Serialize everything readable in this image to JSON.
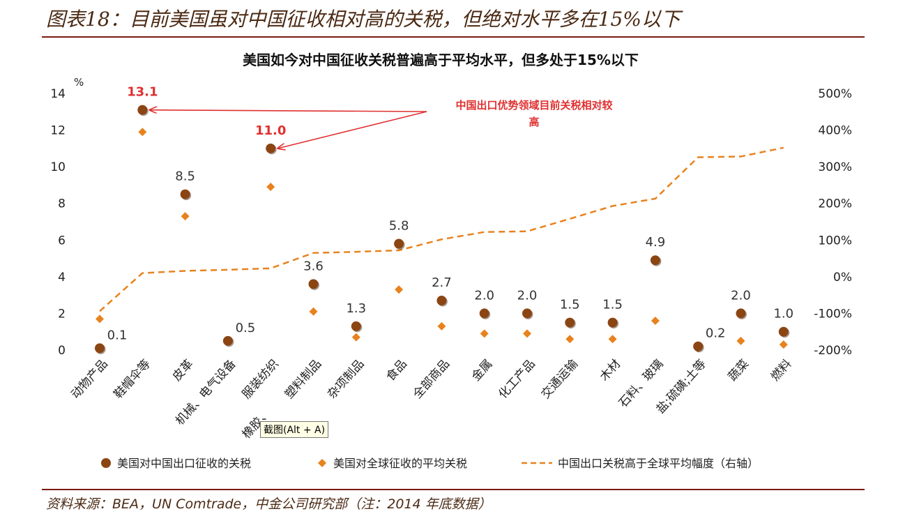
{
  "header": {
    "title": "图表18：目前美国虽对中国征收相对高的关税，但绝对水平多在15%以下"
  },
  "footer": {
    "source": "资料来源：BEA，UN Comtrade，中金公司研究部（注：2014 年底数据）"
  },
  "tooltip": {
    "text": "截图(Alt + A)"
  },
  "colors": {
    "accent_rule": "#7a1a12",
    "series1": "#8b4513",
    "series2": "#e8821e",
    "series3": "#e8821e",
    "annotation": "#e03030"
  },
  "chart_data": {
    "type": "scatter",
    "title": "美国如今对中国征收关税普遍高于平均水平，但多处于15%以下",
    "ylabel": "%",
    "ylim": [
      0,
      14
    ],
    "yticks": [
      "0",
      "2",
      "4",
      "6",
      "8",
      "10",
      "12",
      "14"
    ],
    "y2lim": [
      -200,
      500
    ],
    "y2ticks": [
      "-200%",
      "-100%",
      "0%",
      "100%",
      "200%",
      "300%",
      "400%",
      "500%"
    ],
    "categories": [
      "动物产品",
      "鞋帽伞等",
      "皮革",
      "机械、电气设备",
      "服装纺织",
      "塑料制品",
      "杂项制品",
      "食品",
      "全部商品",
      "金属",
      "化工产品",
      "交通运输",
      "木材",
      "石料、玻璃",
      "盐;硫磺;土等",
      "蔬菜",
      "燃料"
    ],
    "extra_axis_text": "橡胶、",
    "series": [
      {
        "name": "美国对中国出口征收的关税",
        "marker": "circle",
        "values": [
          0.1,
          13.1,
          8.5,
          0.5,
          11.0,
          3.6,
          1.3,
          5.8,
          2.7,
          2.0,
          2.0,
          1.5,
          1.5,
          4.9,
          0.2,
          2.0,
          1.0
        ],
        "labels": [
          "0.1",
          "13.1",
          "8.5",
          "0.5",
          "11.0",
          "3.6",
          "1.3",
          "5.8",
          "2.7",
          "2.0",
          "2.0",
          "1.5",
          "1.5",
          "4.9",
          "0.2",
          "2.0",
          "1.0"
        ]
      },
      {
        "name": "美国对全球征收的平均关税",
        "marker": "diamond",
        "values": [
          1.7,
          11.9,
          7.3,
          0.5,
          8.9,
          2.1,
          0.7,
          3.3,
          1.3,
          0.9,
          0.9,
          0.6,
          0.6,
          1.6,
          0.1,
          0.5,
          0.3
        ]
      },
      {
        "name": "中国出口关税高于全球平均幅度（右轴）",
        "marker": "dashed-line",
        "axis": "right",
        "values": [
          -94,
          10,
          16,
          19,
          23,
          65,
          68,
          72,
          102,
          122,
          124,
          158,
          193,
          213,
          326,
          328,
          352
        ]
      }
    ],
    "highlight_labels": [
      1,
      4
    ],
    "annotation": {
      "line1": "中国出口优势领域目前关税相对较",
      "line2": "高",
      "points_to": [
        1,
        4
      ]
    },
    "legend_position": "bottom",
    "grid": false
  }
}
